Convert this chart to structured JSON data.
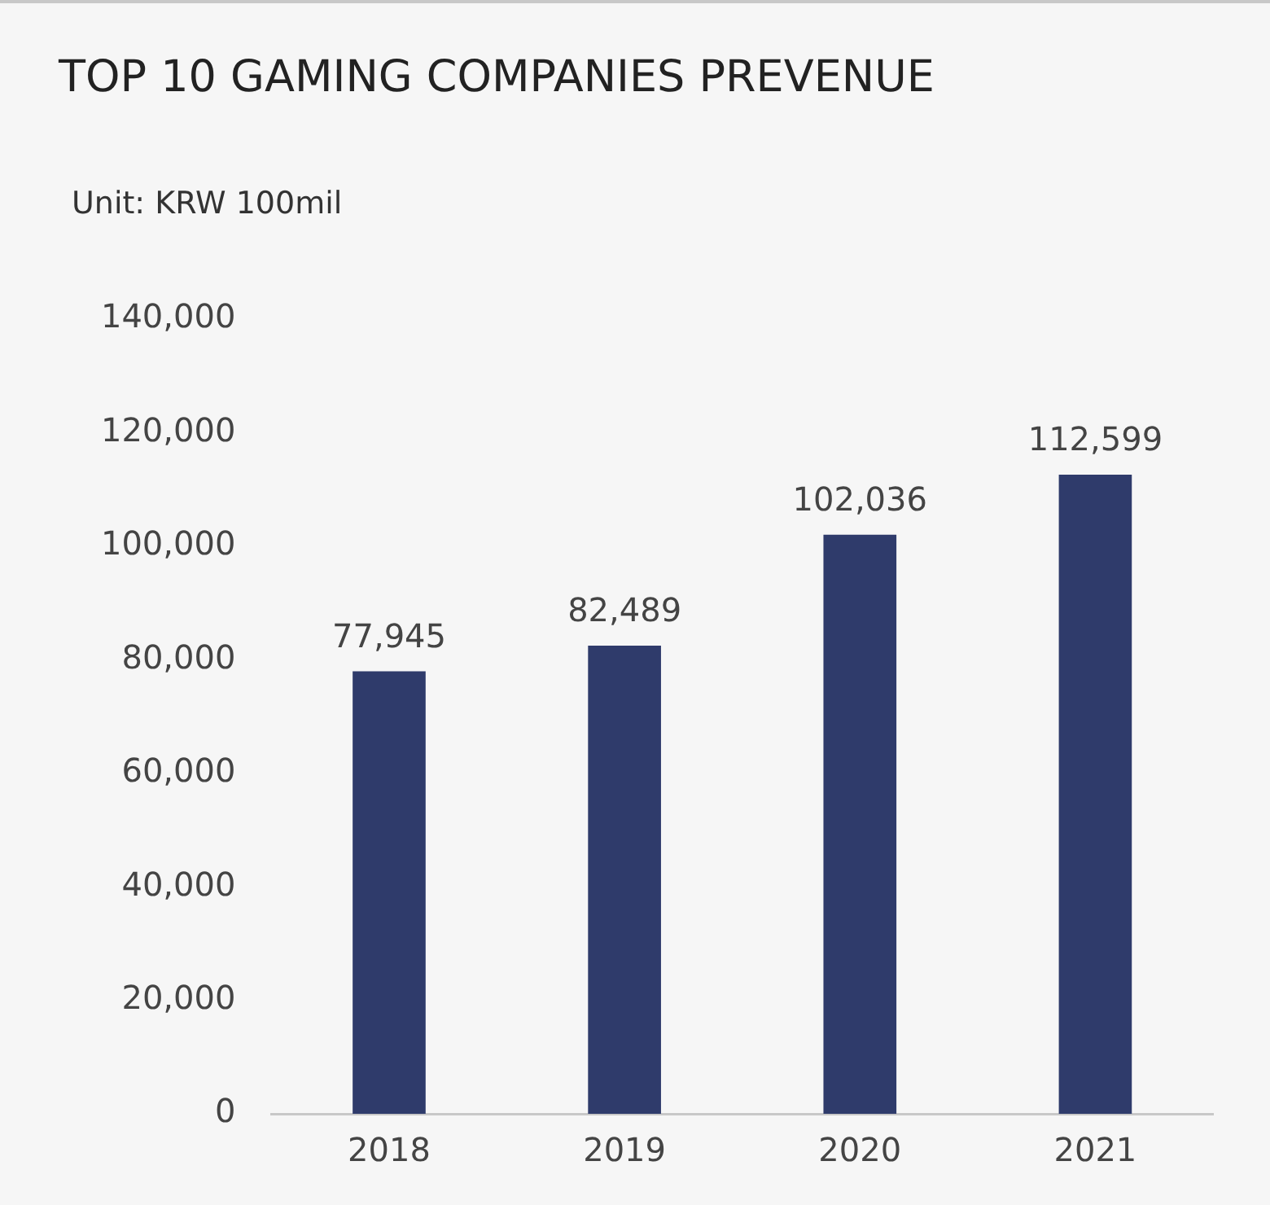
{
  "chart_data": {
    "type": "bar",
    "title": "TOP 10 GAMING COMPANIES PREVENUE",
    "subtitle": "Unit: KRW 100mil",
    "categories": [
      "2018",
      "2019",
      "2020",
      "2021"
    ],
    "values": [
      77945,
      82489,
      102036,
      112599
    ],
    "value_labels": [
      "77,945",
      "82,489",
      "102,036",
      "112,599"
    ],
    "color": "#2f3b6b",
    "ylim": [
      0,
      140000
    ],
    "yticks": [
      {
        "value": 0,
        "label": "0"
      },
      {
        "value": 20000,
        "label": "20,000"
      },
      {
        "value": 40000,
        "label": "40,000"
      },
      {
        "value": 60000,
        "label": "60,000"
      },
      {
        "value": 80000,
        "label": "80,000"
      },
      {
        "value": 100000,
        "label": "100,000"
      },
      {
        "value": 120000,
        "label": "120,000"
      },
      {
        "value": 140000,
        "label": "140,000"
      }
    ],
    "grid": false,
    "legend": false
  }
}
